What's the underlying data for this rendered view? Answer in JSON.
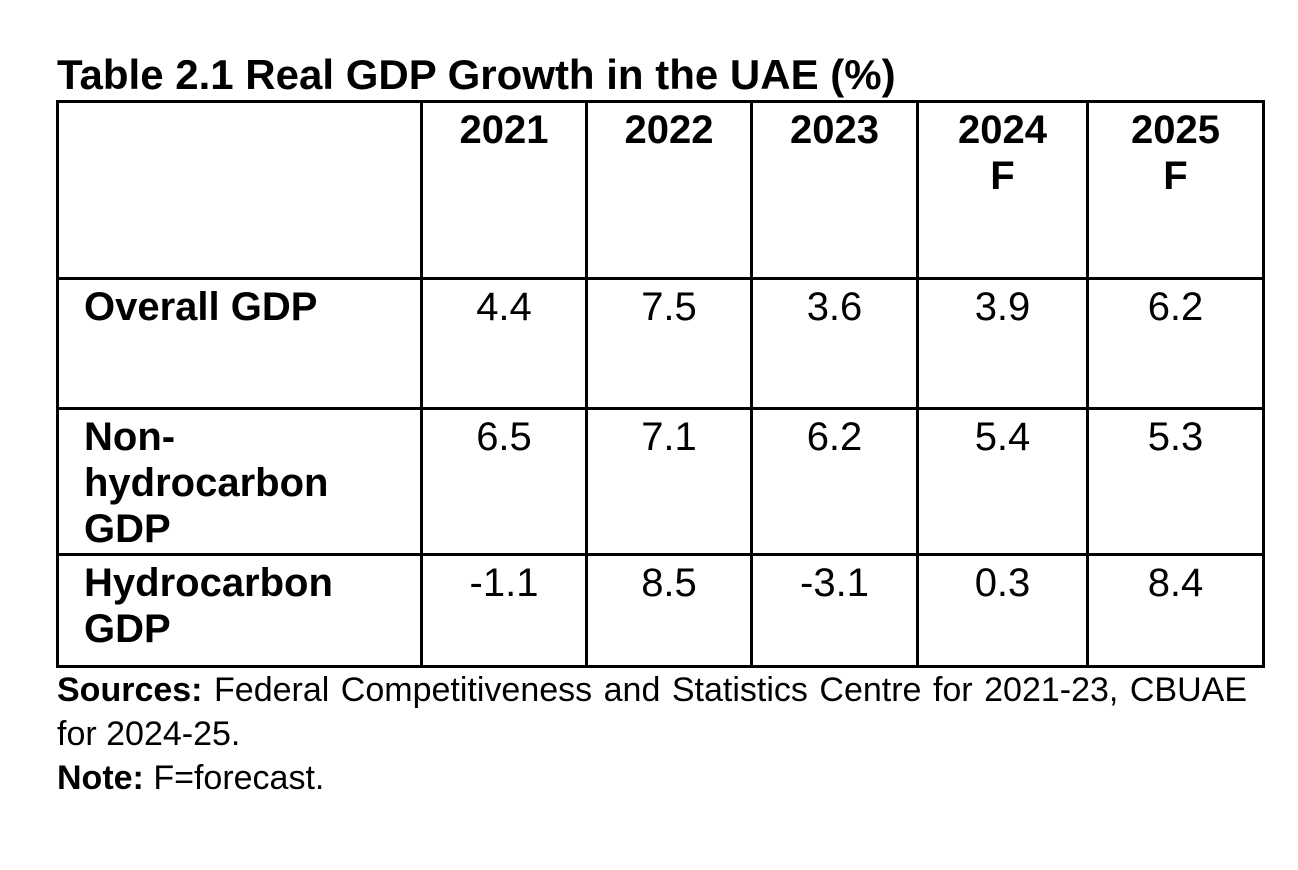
{
  "title": "Table 2.1 Real GDP Growth in the UAE (%)",
  "table": {
    "header": [
      "2021",
      "2022",
      "2023",
      "2024 F",
      "2025 F"
    ],
    "rows": [
      {
        "label": "Overall GDP",
        "values": [
          "4.4",
          "7.5",
          "3.6",
          "3.9",
          "6.2"
        ]
      },
      {
        "label": "Non-hydrocarbon GDP",
        "values": [
          "6.5",
          "7.1",
          "6.2",
          "5.4",
          "5.3"
        ]
      },
      {
        "label": "Hydrocarbon GDP",
        "values": [
          "-1.1",
          "8.5",
          "-3.1",
          "0.3",
          "8.4"
        ]
      }
    ]
  },
  "notes": [
    {
      "label": "Sources:",
      "text": "Federal Competitiveness and Statistics Centre for 2021-23, CBUAE for 2024-25."
    },
    {
      "label": "Note:",
      "text": "F=forecast."
    }
  ]
}
